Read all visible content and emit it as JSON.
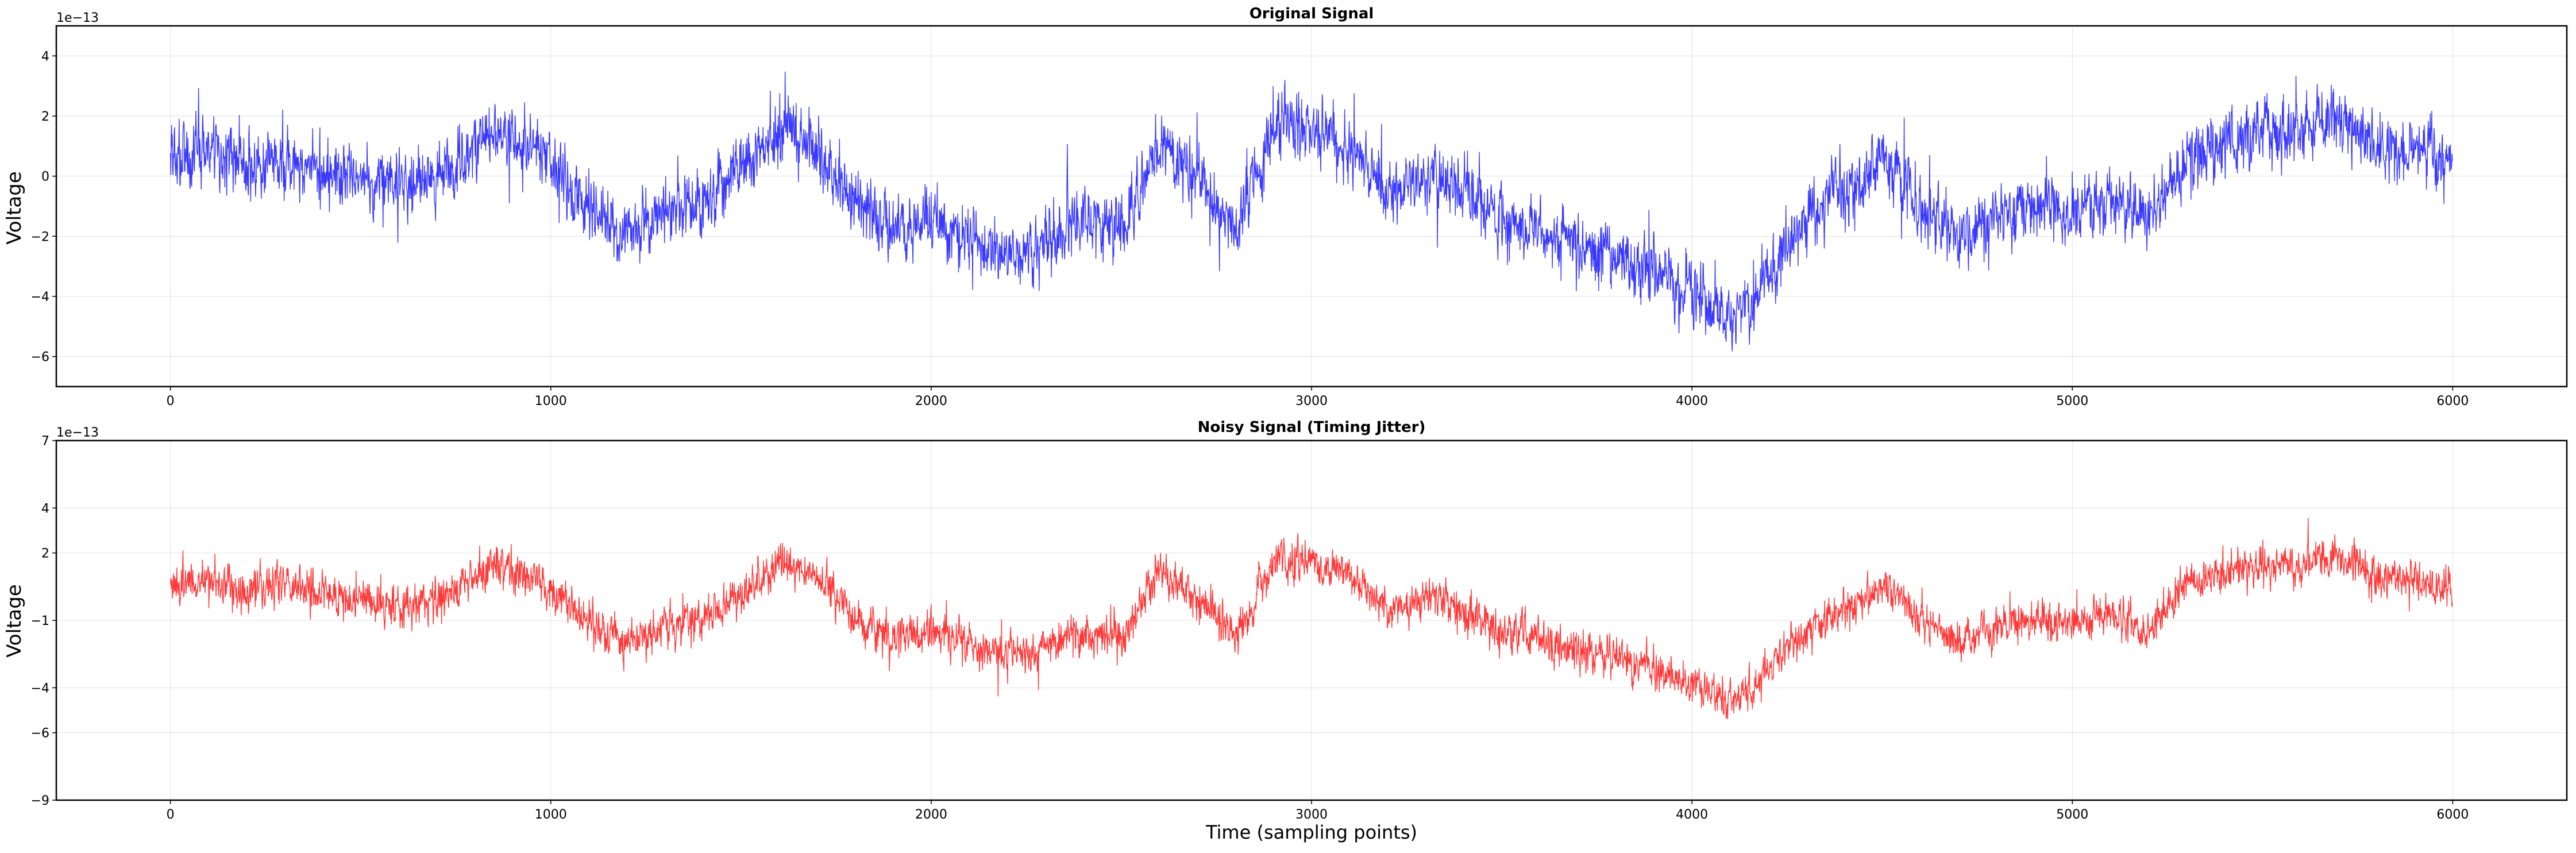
{
  "chart_data": [
    {
      "type": "line",
      "title": "Original Signal",
      "xlabel": "",
      "ylabel": "Voltage",
      "y_offset_label": "1e−13",
      "xlim": [
        -300,
        6300
      ],
      "ylim": [
        -7,
        5
      ],
      "x_ticks": [
        0,
        1000,
        2000,
        3000,
        4000,
        5000,
        6000
      ],
      "x_tick_labels": [
        "0",
        "1000",
        "2000",
        "3000",
        "4000",
        "5000",
        "6000"
      ],
      "y_ticks": [
        4,
        2,
        0,
        -2,
        -4,
        -6
      ],
      "y_tick_labels": [
        "4",
        "2",
        "0",
        "−2",
        "−4",
        "−6"
      ],
      "grid": true,
      "series": [
        {
          "color": "#0000ff",
          "n_points": 6000,
          "unit_multiplier": 1e-13,
          "trend": {
            "x": [
              0,
              100,
              200,
              300,
              450,
              600,
              750,
              850,
              950,
              1100,
              1200,
              1300,
              1400,
              1500,
              1600,
              1700,
              1800,
              1900,
              2000,
              2100,
              2200,
              2300,
              2400,
              2500,
              2600,
              2700,
              2800,
              2900,
              3000,
              3100,
              3200,
              3300,
              3400,
              3500,
              3600,
              3700,
              3800,
              3900,
              4000,
              4100,
              4150,
              4250,
              4350,
              4450,
              4500,
              4600,
              4700,
              4800,
              4900,
              5000,
              5100,
              5200,
              5300,
              5400,
              5500,
              5600,
              5700,
              5800,
              5900,
              6000
            ],
            "y": [
              0.5,
              0.8,
              0.3,
              0.6,
              0.0,
              -0.4,
              0.2,
              1.5,
              1.0,
              -1.0,
              -2.0,
              -1.2,
              -1.0,
              0.2,
              1.6,
              0.8,
              -0.8,
              -1.8,
              -1.5,
              -2.0,
              -2.6,
              -2.2,
              -1.5,
              -1.8,
              1.2,
              0.0,
              -1.8,
              1.5,
              1.7,
              1.0,
              -0.5,
              0.0,
              -0.5,
              -1.5,
              -1.8,
              -2.4,
              -2.8,
              -3.2,
              -3.8,
              -4.6,
              -4.3,
              -2.2,
              -0.8,
              -0.2,
              0.8,
              -1.0,
              -2.0,
              -1.5,
              -0.8,
              -1.2,
              -0.6,
              -1.5,
              0.5,
              1.2,
              1.5,
              1.4,
              1.8,
              1.0,
              0.8,
              0.5
            ],
            "noise_amplitude": 0.9
          }
        }
      ]
    },
    {
      "type": "line",
      "title": "Noisy Signal (Timing Jitter)",
      "xlabel": "Time (sampling points)",
      "ylabel": "Voltage",
      "y_offset_label": "1e−13",
      "xlim": [
        -300,
        6300
      ],
      "ylim": [
        -9,
        7
      ],
      "x_ticks": [
        0,
        1000,
        2000,
        3000,
        4000,
        5000,
        6000
      ],
      "x_tick_labels": [
        "0",
        "1000",
        "2000",
        "3000",
        "4000",
        "5000",
        "6000"
      ],
      "y_ticks": [
        7,
        4,
        2,
        -1,
        -4,
        -6,
        -9
      ],
      "y_tick_labels": [
        "7",
        "4",
        "2",
        "−1",
        "−4",
        "−6",
        "−9"
      ],
      "grid": true,
      "series": [
        {
          "color": "#ff0000",
          "n_points": 6000,
          "unit_multiplier": 1e-13,
          "trend": {
            "x": [
              0,
              100,
              200,
              300,
              450,
              600,
              750,
              850,
              950,
              1100,
              1200,
              1300,
              1400,
              1500,
              1600,
              1700,
              1800,
              1900,
              2000,
              2100,
              2200,
              2300,
              2400,
              2500,
              2600,
              2700,
              2800,
              2900,
              3000,
              3100,
              3200,
              3300,
              3400,
              3500,
              3600,
              3700,
              3800,
              3900,
              4000,
              4100,
              4150,
              4250,
              4350,
              4450,
              4500,
              4600,
              4700,
              4800,
              4900,
              5000,
              5100,
              5200,
              5300,
              5400,
              5500,
              5600,
              5700,
              5800,
              5900,
              6000
            ],
            "y": [
              0.5,
              0.8,
              0.3,
              0.6,
              0.0,
              -0.4,
              0.2,
              1.5,
              1.0,
              -1.0,
              -2.0,
              -1.2,
              -1.0,
              0.2,
              1.6,
              0.8,
              -0.8,
              -1.8,
              -1.5,
              -2.0,
              -2.6,
              -2.2,
              -1.5,
              -1.8,
              1.2,
              0.0,
              -1.8,
              1.5,
              1.7,
              1.0,
              -0.5,
              0.0,
              -0.5,
              -1.5,
              -1.8,
              -2.4,
              -2.8,
              -3.2,
              -3.8,
              -4.6,
              -4.3,
              -2.2,
              -0.8,
              -0.2,
              0.8,
              -1.0,
              -2.0,
              -1.5,
              -0.8,
              -1.2,
              -0.6,
              -1.5,
              0.5,
              1.2,
              1.5,
              1.4,
              1.8,
              1.0,
              0.8,
              0.5
            ],
            "noise_amplitude": 0.75
          }
        }
      ]
    }
  ]
}
